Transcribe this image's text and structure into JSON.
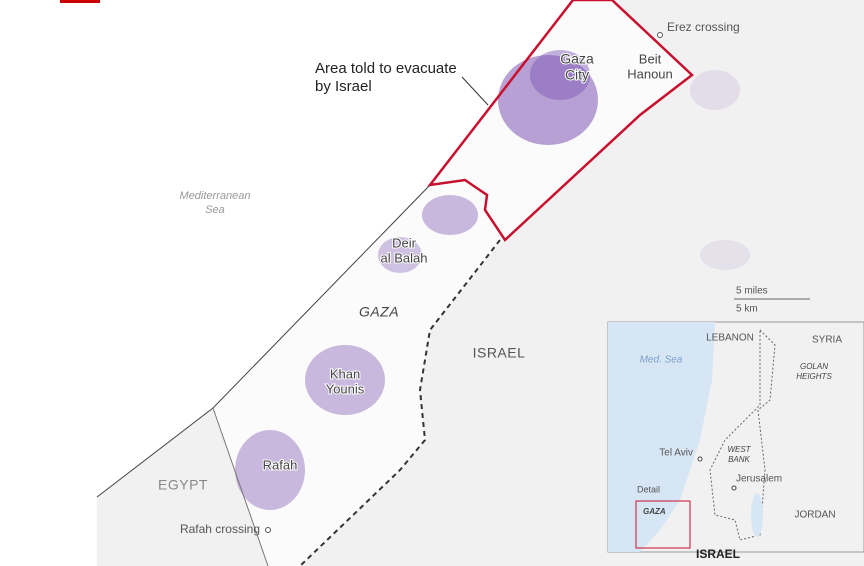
{
  "title_note": [
    "Area told to evacuate",
    "by Israel"
  ],
  "places": {
    "erez_crossing": "Erez crossing",
    "gaza_city": [
      "Gaza",
      "City"
    ],
    "beit_hanoun": [
      "Beit",
      "Hanoun"
    ],
    "mediterranean_sea": [
      "Mediterranean",
      "Sea"
    ],
    "deir_al_balah": [
      "Deir",
      "al Balah"
    ],
    "gaza": "GAZA",
    "israel": "ISRAEL",
    "khan_younis": [
      "Khan",
      "Younis"
    ],
    "rafah": "Rafah",
    "egypt": "EGYPT",
    "rafah_crossing": "Rafah crossing"
  },
  "scale": {
    "miles": "5 miles",
    "km": "5 km"
  },
  "inset": {
    "lebanon": "LEBANON",
    "syria": "SYRIA",
    "med_sea": "Med. Sea",
    "golan_heights": [
      "GOLAN",
      "HEIGHTS"
    ],
    "west_bank": [
      "WEST",
      "BANK"
    ],
    "tel_aviv": "Tel Aviv",
    "jerusalem": "Jerusalem",
    "detail": "Detail",
    "gaza": "GAZA",
    "jordan": "JORDAN",
    "israel": "ISRAEL"
  }
}
